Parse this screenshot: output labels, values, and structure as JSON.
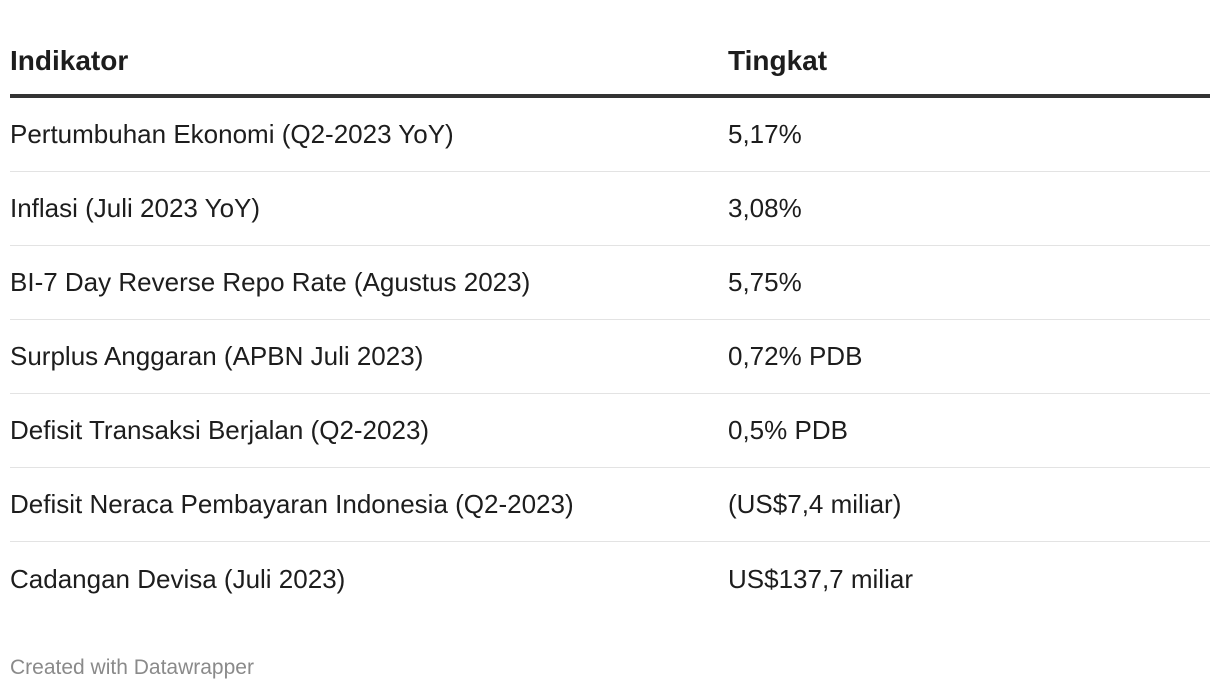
{
  "chart_data": {
    "type": "table",
    "columns": [
      "Indikator",
      "Tingkat"
    ],
    "rows": [
      [
        "Pertumbuhan Ekonomi (Q2-2023 YoY)",
        "5,17%"
      ],
      [
        "Inflasi (Juli 2023 YoY)",
        "3,08%"
      ],
      [
        "BI-7 Day Reverse Repo Rate (Agustus 2023)",
        "5,75%"
      ],
      [
        "Surplus Anggaran (APBN Juli 2023)",
        "0,72% PDB"
      ],
      [
        "Defisit Transaksi Berjalan (Q2-2023)",
        "0,5% PDB"
      ],
      [
        "Defisit Neraca Pembayaran Indonesia (Q2-2023)",
        "(US$7,4 miliar)"
      ],
      [
        "Cadangan Devisa (Juli 2023)",
        "US$137,7 miliar"
      ]
    ]
  },
  "footer": {
    "credit": "Created with Datawrapper"
  },
  "colors": {
    "text": "#1d1d1d",
    "header_rule": "#333333",
    "row_rule": "#e3e3e3",
    "footer_text": "#8a8a8a"
  }
}
